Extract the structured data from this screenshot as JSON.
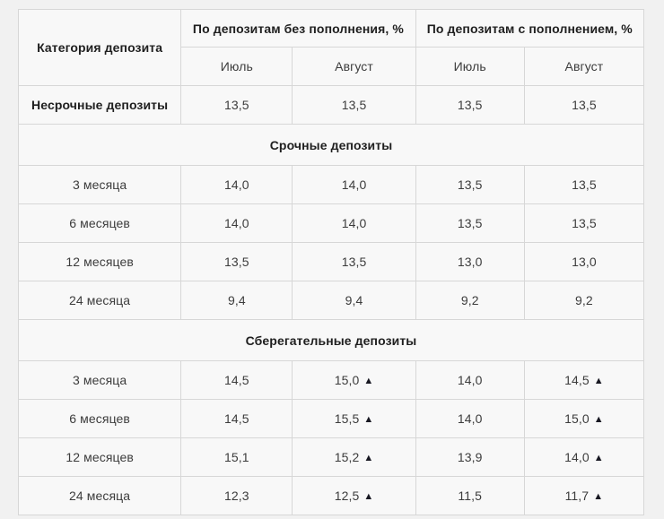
{
  "chart_data": {
    "type": "table",
    "title": "",
    "category_header": "Категория депозита",
    "column_groups": [
      "По депозитам без пополнения, %",
      "По депозитам с пополнением, %"
    ],
    "sub_headers": [
      "Июль",
      "Август",
      "Июль",
      "Август"
    ],
    "up_arrow": "▲",
    "rows": [
      {
        "kind": "data",
        "label": "Несрочные депозиты",
        "bold": true,
        "cells": [
          {
            "v": "13,5"
          },
          {
            "v": "13,5"
          },
          {
            "v": "13,5"
          },
          {
            "v": "13,5"
          }
        ]
      },
      {
        "kind": "section",
        "label": "Срочные депозиты"
      },
      {
        "kind": "data",
        "label": "3 месяца",
        "cells": [
          {
            "v": "14,0"
          },
          {
            "v": "14,0"
          },
          {
            "v": "13,5"
          },
          {
            "v": "13,5"
          }
        ]
      },
      {
        "kind": "data",
        "label": "6 месяцев",
        "cells": [
          {
            "v": "14,0"
          },
          {
            "v": "14,0"
          },
          {
            "v": "13,5"
          },
          {
            "v": "13,5"
          }
        ]
      },
      {
        "kind": "data",
        "label": "12 месяцев",
        "cells": [
          {
            "v": "13,5"
          },
          {
            "v": "13,5"
          },
          {
            "v": "13,0"
          },
          {
            "v": "13,0"
          }
        ]
      },
      {
        "kind": "data",
        "label": "24 месяца",
        "cells": [
          {
            "v": "9,4"
          },
          {
            "v": "9,4"
          },
          {
            "v": "9,2"
          },
          {
            "v": "9,2"
          }
        ]
      },
      {
        "kind": "section",
        "label": "Сберегательные депозиты"
      },
      {
        "kind": "data",
        "label": "3 месяца",
        "cells": [
          {
            "v": "14,5"
          },
          {
            "v": "15,0",
            "up": true
          },
          {
            "v": "14,0"
          },
          {
            "v": "14,5",
            "up": true
          }
        ]
      },
      {
        "kind": "data",
        "label": "6 месяцев",
        "cells": [
          {
            "v": "14,5"
          },
          {
            "v": "15,5",
            "up": true
          },
          {
            "v": "14,0"
          },
          {
            "v": "15,0",
            "up": true
          }
        ]
      },
      {
        "kind": "data",
        "label": "12 месяцев",
        "cells": [
          {
            "v": "15,1"
          },
          {
            "v": "15,2",
            "up": true
          },
          {
            "v": "13,9"
          },
          {
            "v": "14,0",
            "up": true
          }
        ]
      },
      {
        "kind": "data",
        "label": "24 месяца",
        "cells": [
          {
            "v": "12,3"
          },
          {
            "v": "12,5",
            "up": true
          },
          {
            "v": "11,5"
          },
          {
            "v": "11,7",
            "up": true
          }
        ]
      }
    ],
    "colors": {
      "page_background": "#f1f1f1",
      "cell_background": "#f8f8f8",
      "border": "#d7d7d7",
      "header_text": "#1f1f1f",
      "value_text": "#3c3c3c",
      "arrow": "#181822"
    },
    "layout": {
      "grid": true,
      "legend": "none"
    }
  }
}
